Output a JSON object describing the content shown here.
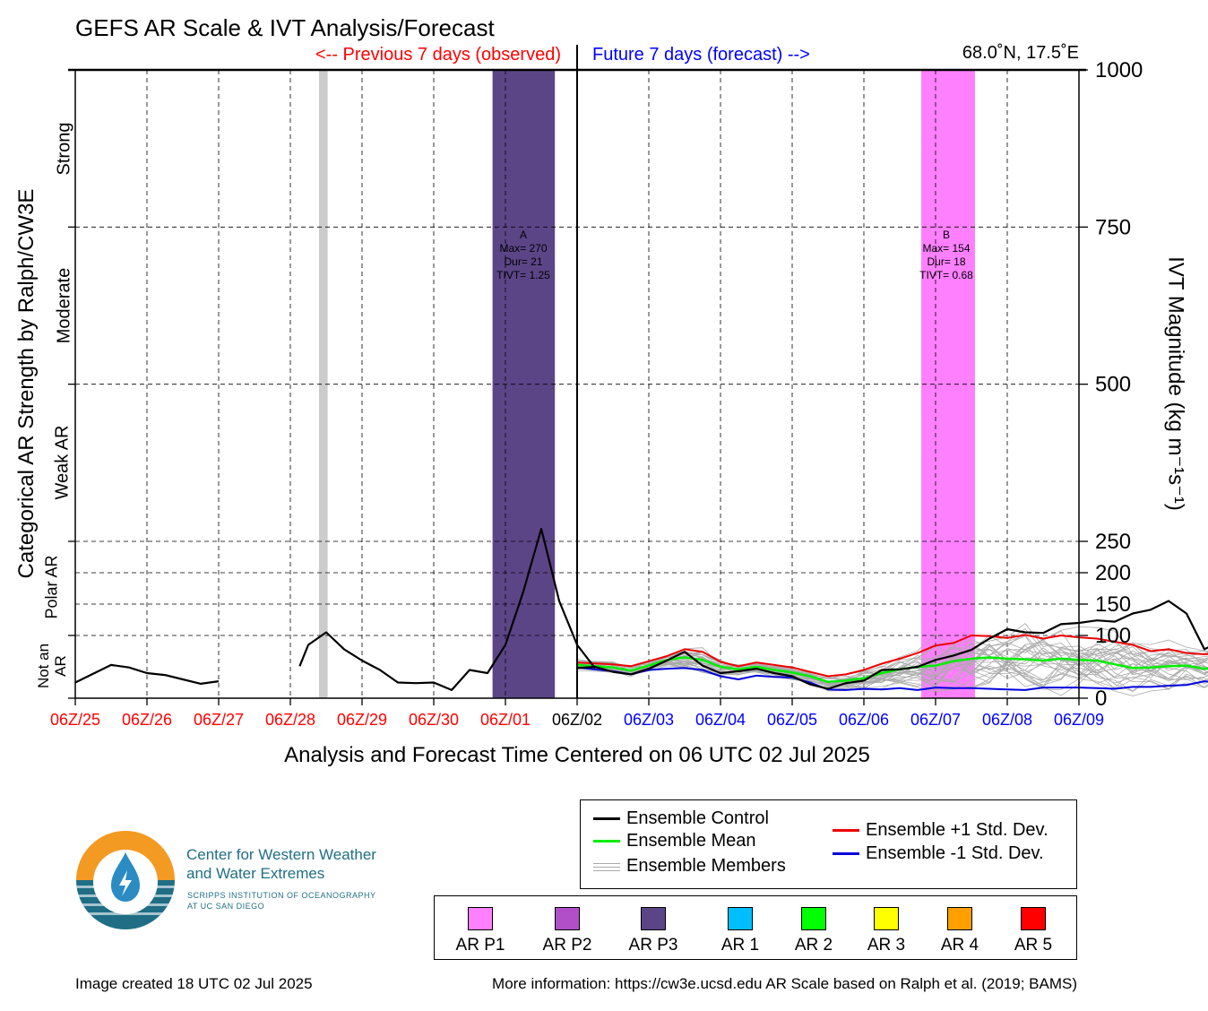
{
  "title": "GEFS AR Scale & IVT Analysis/Forecast",
  "previous_label": "<-- Previous 7 days (observed)",
  "future_label": "Future 7 days (forecast) -->",
  "location": "68.0˚N, 17.5˚E",
  "xlabel": "Analysis and Forecast Time Centered on 06 UTC 02 Jul 2025",
  "left_axis_label": "Categorical AR Strength by Ralph/CW3E",
  "right_axis_label": "IVT Magnitude (kg m⁻¹s⁻¹)",
  "categories": [
    "Not an AR",
    "Polar AR",
    "Weak AR",
    "Moderate",
    "Strong"
  ],
  "colors": {
    "observed": "#ff0000",
    "forecast": "#0000ff",
    "control": "#000000",
    "mean": "#00ee00",
    "plus_std": "#ee0000",
    "minus_std": "#0000dd",
    "members": "#aaaaaa",
    "ar_p1": "#ff80ff",
    "ar_p2": "#b04fc8",
    "ar_p3": "#5c4587",
    "ar1": "#00bfff",
    "ar2": "#00ff00",
    "ar3": "#ffff00",
    "ar4": "#ffa000",
    "ar5": "#ff0000"
  },
  "legend": {
    "control": "Ensemble Control",
    "mean": "Ensemble Mean",
    "members": "Ensemble Members",
    "plus_std": "Ensemble +1 Std. Dev.",
    "minus_std": "Ensemble -1 Std. Dev."
  },
  "scale_legend": [
    {
      "label": "AR P1",
      "color": "#ff80ff"
    },
    {
      "label": "AR P2",
      "color": "#b04fc8"
    },
    {
      "label": "AR P3",
      "color": "#5c4587"
    },
    {
      "label": "AR 1",
      "color": "#00bfff"
    },
    {
      "label": "AR 2",
      "color": "#00ff00"
    },
    {
      "label": "AR 3",
      "color": "#ffff00"
    },
    {
      "label": "AR 4",
      "color": "#ffa000"
    },
    {
      "label": "AR 5",
      "color": "#ff0000"
    }
  ],
  "logo": {
    "name_line1": "Center for Western Weather",
    "name_line2": "and Water Extremes",
    "sub_line1": "SCRIPPS INSTITUTION OF OCEANOGRAPHY",
    "sub_line2": "AT UC SAN DIEGO"
  },
  "footer_left": "Image created 18 UTC 02 Jul 2025",
  "footer_right": "More information: https://cw3e.ucsd.edu AR Scale based on Ralph et al. (2019; BAMS)",
  "chart_data": {
    "type": "line",
    "x_tick_labels": [
      "06Z/25",
      "06Z/26",
      "06Z/27",
      "06Z/28",
      "06Z/29",
      "06Z/30",
      "06Z/01",
      "06Z/02",
      "06Z/03",
      "06Z/04",
      "06Z/05",
      "06Z/06",
      "06Z/07",
      "06Z/08",
      "06Z/09"
    ],
    "x_range_days": [
      -7,
      7
    ],
    "y_ticks": [
      0,
      100,
      150,
      200,
      250,
      500,
      750,
      1000
    ],
    "y_scale": "piecewise",
    "grid": "dashed",
    "events": [
      {
        "label": "A",
        "max": "Max= 270",
        "dur": "Dur= 21",
        "tivt": "TIVT= 1.25",
        "start_day": -1.18,
        "end_day": -0.31,
        "color": "#5c4587"
      },
      {
        "label": "B",
        "max": "Max= 154",
        "dur": "Dur= 18",
        "tivt": "TIVT= 0.68",
        "start_day": 4.8,
        "end_day": 5.55,
        "color": "#ff80ff"
      }
    ],
    "missing_band": {
      "start_day": -3.6,
      "end_day": -3.48
    },
    "control_observed": [
      [
        [
          -7,
          25
        ],
        [
          -6.5,
          53
        ],
        [
          -6.25,
          49
        ],
        [
          -6,
          40
        ],
        [
          -5.75,
          37
        ],
        [
          -5.5,
          30
        ],
        [
          -5.25,
          23
        ],
        [
          -5,
          27
        ]
      ],
      [
        [
          -3.87,
          51
        ],
        [
          -3.75,
          85
        ],
        [
          -3.5,
          105
        ],
        [
          -3.25,
          78
        ],
        [
          -3,
          60
        ],
        [
          -2.75,
          45
        ],
        [
          -2.5,
          25
        ],
        [
          -2.25,
          24
        ],
        [
          -2,
          25
        ],
        [
          -1.75,
          13
        ],
        [
          -1.5,
          45
        ],
        [
          -1.25,
          40
        ],
        [
          -1,
          85
        ],
        [
          -0.75,
          170
        ],
        [
          -0.5,
          270
        ],
        [
          -0.25,
          155
        ],
        [
          0,
          85
        ],
        [
          0.25,
          48
        ]
      ]
    ],
    "control_forecast": [
      [
        0,
        48
      ],
      [
        0.25,
        50
      ],
      [
        0.5,
        42
      ],
      [
        0.75,
        38
      ],
      [
        1,
        47
      ],
      [
        1.25,
        60
      ],
      [
        1.5,
        74
      ],
      [
        1.75,
        52
      ],
      [
        2,
        40
      ],
      [
        2.25,
        43
      ],
      [
        2.5,
        47
      ],
      [
        2.75,
        40
      ],
      [
        3,
        35
      ],
      [
        3.25,
        22
      ],
      [
        3.5,
        15
      ],
      [
        3.75,
        24
      ],
      [
        4,
        28
      ],
      [
        4.25,
        45
      ],
      [
        4.5,
        46
      ],
      [
        4.75,
        50
      ],
      [
        5,
        61
      ],
      [
        5.25,
        68
      ],
      [
        5.5,
        77
      ],
      [
        5.75,
        95
      ],
      [
        6,
        110
      ],
      [
        6.25,
        105
      ],
      [
        6.5,
        104
      ],
      [
        6.75,
        118
      ],
      [
        7,
        120
      ],
      [
        7.25,
        124
      ],
      [
        7.5,
        122
      ],
      [
        7.75,
        135
      ],
      [
        8,
        141
      ],
      [
        8.25,
        155
      ],
      [
        8.5,
        135
      ],
      [
        8.75,
        78
      ],
      [
        9,
        92
      ],
      [
        9.25,
        82
      ],
      [
        9.5,
        70
      ],
      [
        9.75,
        40
      ],
      [
        10,
        13
      ],
      [
        10.25,
        25
      ],
      [
        10.5,
        75
      ],
      [
        10.75,
        102
      ]
    ],
    "mean": [
      [
        0,
        53
      ],
      [
        0.5,
        49
      ],
      [
        0.75,
        44
      ],
      [
        1,
        52
      ],
      [
        1.25,
        61
      ],
      [
        1.5,
        65
      ],
      [
        1.75,
        61
      ],
      [
        2,
        50
      ],
      [
        2.25,
        46
      ],
      [
        2.5,
        50
      ],
      [
        2.75,
        45
      ],
      [
        3,
        41
      ],
      [
        3.25,
        35
      ],
      [
        3.5,
        26
      ],
      [
        3.75,
        28
      ],
      [
        4,
        32
      ],
      [
        4.25,
        40
      ],
      [
        4.5,
        46
      ],
      [
        4.75,
        50
      ],
      [
        5,
        52
      ],
      [
        5.25,
        59
      ],
      [
        5.5,
        63
      ],
      [
        5.75,
        65
      ],
      [
        6,
        63
      ],
      [
        6.25,
        62
      ],
      [
        6.5,
        60
      ],
      [
        6.75,
        63
      ],
      [
        7,
        61
      ],
      [
        7.25,
        60
      ],
      [
        7.5,
        54
      ],
      [
        7.75,
        48
      ],
      [
        8,
        49
      ],
      [
        8.25,
        51
      ],
      [
        8.5,
        52
      ],
      [
        8.75,
        47
      ],
      [
        9,
        48
      ],
      [
        9.25,
        46
      ],
      [
        9.5,
        48
      ],
      [
        9.75,
        50
      ],
      [
        10,
        52
      ],
      [
        10.25,
        50
      ],
      [
        10.5,
        47
      ],
      [
        10.75,
        47
      ]
    ],
    "plus_std": [
      [
        0,
        57
      ],
      [
        0.5,
        54
      ],
      [
        0.75,
        51
      ],
      [
        1,
        59
      ],
      [
        1.25,
        67
      ],
      [
        1.5,
        78
      ],
      [
        1.75,
        74
      ],
      [
        2,
        58
      ],
      [
        2.25,
        51
      ],
      [
        2.5,
        57
      ],
      [
        2.75,
        53
      ],
      [
        3,
        49
      ],
      [
        3.25,
        42
      ],
      [
        3.5,
        35
      ],
      [
        3.75,
        38
      ],
      [
        4,
        45
      ],
      [
        4.25,
        55
      ],
      [
        4.5,
        63
      ],
      [
        4.75,
        72
      ],
      [
        5,
        84
      ],
      [
        5.25,
        88
      ],
      [
        5.5,
        100
      ],
      [
        5.75,
        99
      ],
      [
        6,
        96
      ],
      [
        6.25,
        101
      ],
      [
        6.5,
        95
      ],
      [
        6.75,
        100
      ],
      [
        7,
        97
      ],
      [
        7.25,
        95
      ],
      [
        7.5,
        90
      ],
      [
        7.75,
        85
      ],
      [
        8,
        75
      ],
      [
        8.25,
        78
      ],
      [
        8.5,
        72
      ],
      [
        8.75,
        70
      ],
      [
        9,
        73
      ],
      [
        9.25,
        68
      ],
      [
        9.5,
        75
      ],
      [
        9.75,
        82
      ],
      [
        10,
        86
      ],
      [
        10.25,
        88
      ],
      [
        10.5,
        84
      ],
      [
        10.75,
        82
      ]
    ],
    "minus_std": [
      [
        0,
        49
      ],
      [
        0.5,
        43
      ],
      [
        0.75,
        38
      ],
      [
        1,
        45
      ],
      [
        1.25,
        47
      ],
      [
        1.5,
        48
      ],
      [
        1.75,
        45
      ],
      [
        2,
        35
      ],
      [
        2.25,
        30
      ],
      [
        2.5,
        36
      ],
      [
        2.75,
        34
      ],
      [
        3,
        33
      ],
      [
        3.25,
        25
      ],
      [
        3.5,
        14
      ],
      [
        3.75,
        13
      ],
      [
        4,
        15
      ],
      [
        4.25,
        14
      ],
      [
        4.5,
        16
      ],
      [
        4.75,
        13
      ],
      [
        5,
        17
      ],
      [
        5.25,
        16
      ],
      [
        5.5,
        16
      ],
      [
        5.75,
        15
      ],
      [
        6,
        14
      ],
      [
        6.25,
        13
      ],
      [
        6.5,
        17
      ],
      [
        6.75,
        17
      ],
      [
        7,
        17
      ],
      [
        7.25,
        16
      ],
      [
        7.5,
        15
      ],
      [
        7.75,
        18
      ],
      [
        8,
        18
      ],
      [
        8.25,
        20
      ],
      [
        8.5,
        21
      ],
      [
        8.75,
        27
      ],
      [
        9,
        24
      ],
      [
        9.25,
        25
      ],
      [
        9.5,
        23
      ],
      [
        9.75,
        20
      ],
      [
        10,
        17
      ],
      [
        10.25,
        16
      ],
      [
        10.5,
        15
      ],
      [
        10.75,
        15
      ]
    ],
    "members_range_note": "ensemble members approx. 5-195"
  }
}
